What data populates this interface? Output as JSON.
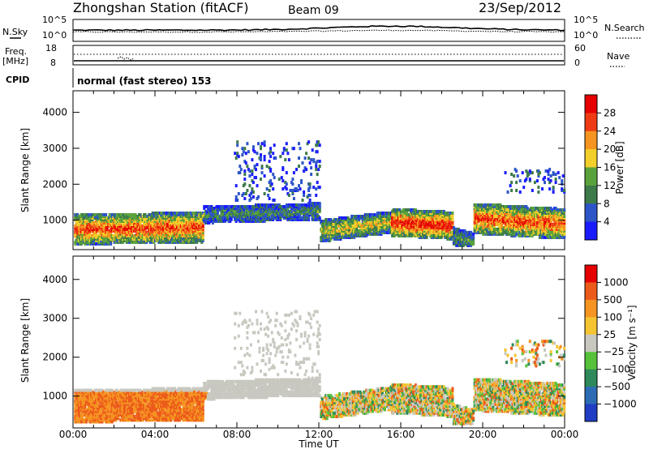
{
  "header": {
    "station": "Zhongshan Station (fitACF)",
    "beam": "Beam 09",
    "date": "23/Sep/2012"
  },
  "top_panels": {
    "nsky_label": "N.Sky",
    "nsky_ticks": [
      "10^5",
      "10^0"
    ],
    "nsearch_label": "N.Search",
    "nsearch_ticks": [
      "10^5",
      "10^0"
    ],
    "freq_label": "Freq.",
    "freq_unit": "[MHz]",
    "freq_ticks": [
      "18",
      "8"
    ],
    "nave_label": "Nave",
    "nave_ticks": [
      "60",
      "0"
    ],
    "cpid_label": "CPID",
    "cpid_text": "normal (fast stereo) 153"
  },
  "chart_data": [
    {
      "type": "heatmap",
      "name": "power",
      "ylabel": "Slant Range [km]",
      "y_ticks": [
        "1000",
        "2000",
        "3000",
        "4000"
      ],
      "ylim": [
        180,
        4600
      ],
      "x_ticks": [
        "00:00",
        "04:00",
        "08:00",
        "12:00",
        "16:00",
        "20:00",
        "00:00"
      ],
      "xlim": [
        0,
        24
      ],
      "colorbar_label": "Power [dB]",
      "colorbar_ticks": [
        "28",
        "24",
        "20",
        "16",
        "12",
        "8",
        "4"
      ],
      "colors": [
        "#1b1bff",
        "#2d55c8",
        "#3c7a4a",
        "#5aa33c",
        "#f2cf2a",
        "#f59421",
        "#ee3b14",
        "#e60000"
      ]
    },
    {
      "type": "heatmap",
      "name": "velocity",
      "ylabel": "Slant Range [km]",
      "y_ticks": [
        "1000",
        "2000",
        "3000",
        "4000"
      ],
      "ylim": [
        180,
        4600
      ],
      "x_ticks": [
        "00:00",
        "04:00",
        "08:00",
        "12:00",
        "16:00",
        "20:00",
        "00:00"
      ],
      "xlim": [
        0,
        24
      ],
      "xlabel": "Time UT",
      "colorbar_label": "Velocity [m s⁻¹]",
      "colorbar_ticks": [
        "1000",
        "500",
        "100",
        "25",
        "−25",
        "−100",
        "−500",
        "−1000"
      ],
      "colors": [
        "#1f3ec4",
        "#2d6bb4",
        "#2e8a5a",
        "#56c23a",
        "#c8c8c0",
        "#f5c431",
        "#f59421",
        "#ec5a1a",
        "#e60000"
      ]
    }
  ]
}
